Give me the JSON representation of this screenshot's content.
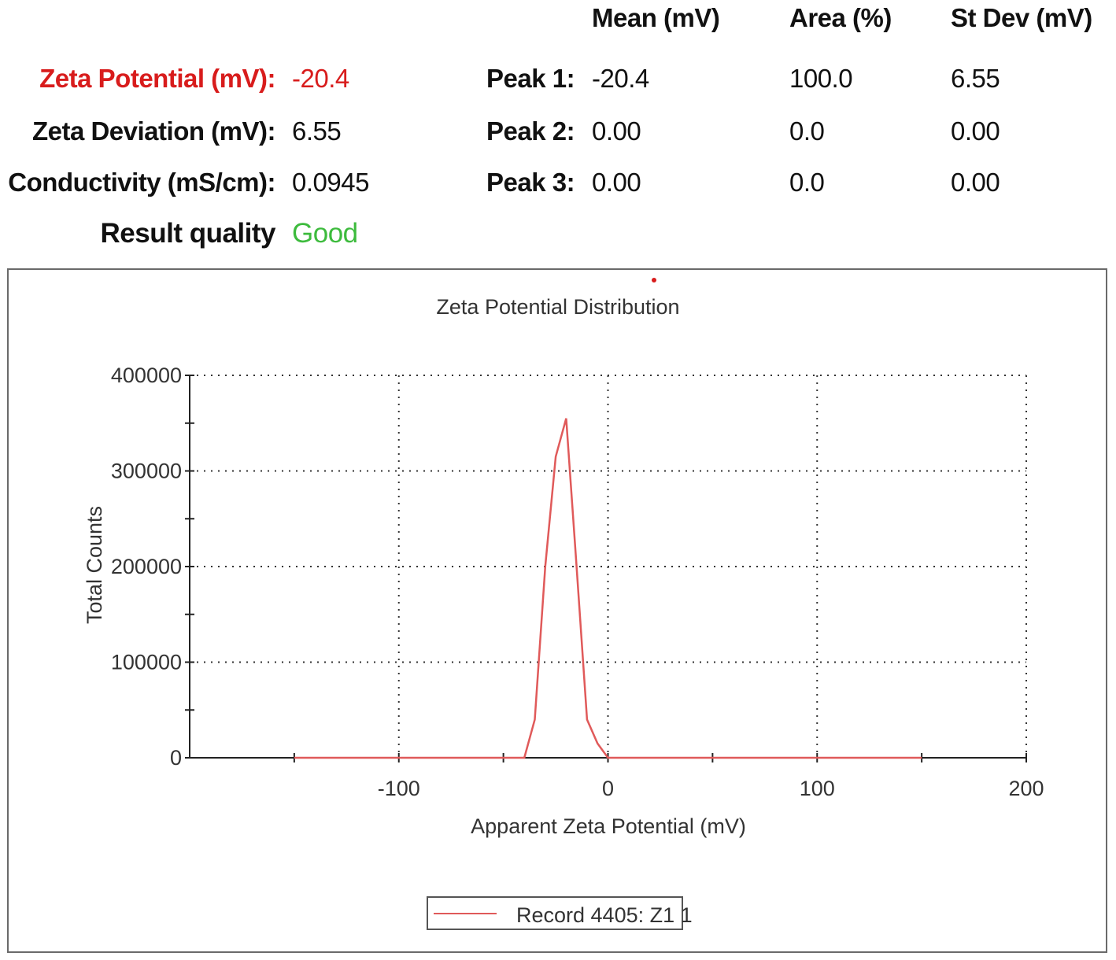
{
  "summary": {
    "headers": {
      "mean": "Mean (mV)",
      "area": "Area (%)",
      "stdev": "St Dev (mV)"
    },
    "left": [
      {
        "label": "Zeta Potential (mV):",
        "value": "-20.4"
      },
      {
        "label": "Zeta Deviation (mV):",
        "value": "6.55"
      },
      {
        "label": "Conductivity (mS/cm):",
        "value": "0.0945"
      },
      {
        "label": "Result quality",
        "value": "Good"
      }
    ],
    "peaks": [
      {
        "label": "Peak 1:",
        "mean": "-20.4",
        "area": "100.0",
        "stdev": "6.55"
      },
      {
        "label": "Peak 2:",
        "mean": "0.00",
        "area": "0.0",
        "stdev": "0.00"
      },
      {
        "label": "Peak 3:",
        "mean": "0.00",
        "area": "0.0",
        "stdev": "0.00"
      }
    ]
  },
  "colors": {
    "zeta_label": "#d81c1c",
    "good": "#3dbb3d",
    "series": "#e05a5a",
    "axis": "#222222",
    "grid": "#333333"
  },
  "chart_data": {
    "type": "line",
    "title": "Zeta Potential Distribution",
    "xlabel": "Apparent Zeta Potential (mV)",
    "ylabel": "Total Counts",
    "xlim": [
      -200,
      200
    ],
    "ylim": [
      0,
      400000
    ],
    "x_ticks": [
      -100,
      0,
      100,
      200
    ],
    "x_tick_labels": [
      "-100",
      "0",
      "100",
      "200"
    ],
    "y_ticks": [
      0,
      100000,
      200000,
      300000,
      400000
    ],
    "y_tick_labels": [
      "0",
      "100000",
      "200000",
      "300000",
      "400000"
    ],
    "grid": true,
    "legend_position": "bottom-center",
    "series": [
      {
        "name": "Record 4405: Z1 1",
        "x": [
          -150,
          -40,
          -35,
          -30,
          -25,
          -20,
          -15,
          -10,
          -5,
          0,
          150
        ],
        "y": [
          0,
          0,
          40000,
          200000,
          315000,
          355000,
          200000,
          40000,
          15000,
          0,
          0
        ]
      }
    ]
  }
}
